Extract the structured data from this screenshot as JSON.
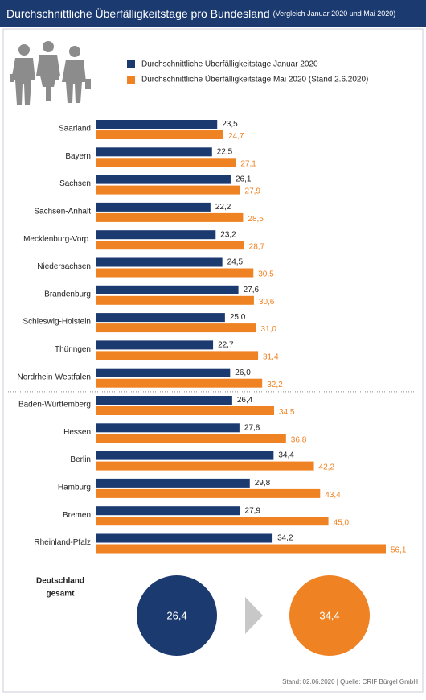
{
  "chart_data": {
    "type": "bar",
    "orientation": "horizontal",
    "title": "Durchschnittliche Überfälligkeitstage pro Bundesland",
    "subtitle": "(Vergleich Januar 2020 und Mai 2020)",
    "categories": [
      "Saarland",
      "Bayern",
      "Sachsen",
      "Sachsen-Anhalt",
      "Mecklenburg-Vorp.",
      "Niedersachsen",
      "Brandenburg",
      "Schleswig-Holstein",
      "Thüringen",
      "Nordrhein-Westfalen",
      "Baden-Württemberg",
      "Hessen",
      "Berlin",
      "Hamburg",
      "Bremen",
      "Rheinland-Pfalz"
    ],
    "series": [
      {
        "name": "Durchschnittliche Überfälligkeitstage Januar 2020",
        "color": "#1b3a70",
        "values": [
          23.5,
          22.5,
          26.1,
          22.2,
          23.2,
          24.5,
          27.6,
          25.0,
          22.7,
          26.0,
          26.4,
          27.8,
          34.4,
          29.8,
          27.9,
          34.2
        ],
        "value_labels": [
          "23,5",
          "22,5",
          "26,1",
          "22,2",
          "23,2",
          "24,5",
          "27,6",
          "25,0",
          "22,7",
          "26,0",
          "26,4",
          "27,8",
          "34,4",
          "29,8",
          "27,9",
          "34,2"
        ]
      },
      {
        "name": "Durchschnittliche Überfälligkeitstage Mai 2020 (Stand 2.6.2020)",
        "color": "#ef8223",
        "values": [
          24.7,
          27.1,
          27.9,
          28.5,
          28.7,
          30.5,
          30.6,
          31.0,
          31.4,
          32.2,
          34.5,
          36.8,
          42.2,
          43.4,
          45.0,
          56.1
        ],
        "value_labels": [
          "24,7",
          "27,1",
          "27,9",
          "28,5",
          "28,7",
          "30,5",
          "30,6",
          "31,0",
          "31,4",
          "32,2",
          "34,5",
          "36,8",
          "42,2",
          "43,4",
          "45,0",
          "56,1"
        ]
      }
    ],
    "summary": {
      "label_lines": [
        "Deutschland",
        "gesamt"
      ],
      "values": [
        26.4,
        34.4
      ],
      "value_labels": [
        "26,4",
        "34,4"
      ]
    },
    "source": "Stand: 02.06.2020 | Quelle: CRIF Bürgel GmbH"
  }
}
